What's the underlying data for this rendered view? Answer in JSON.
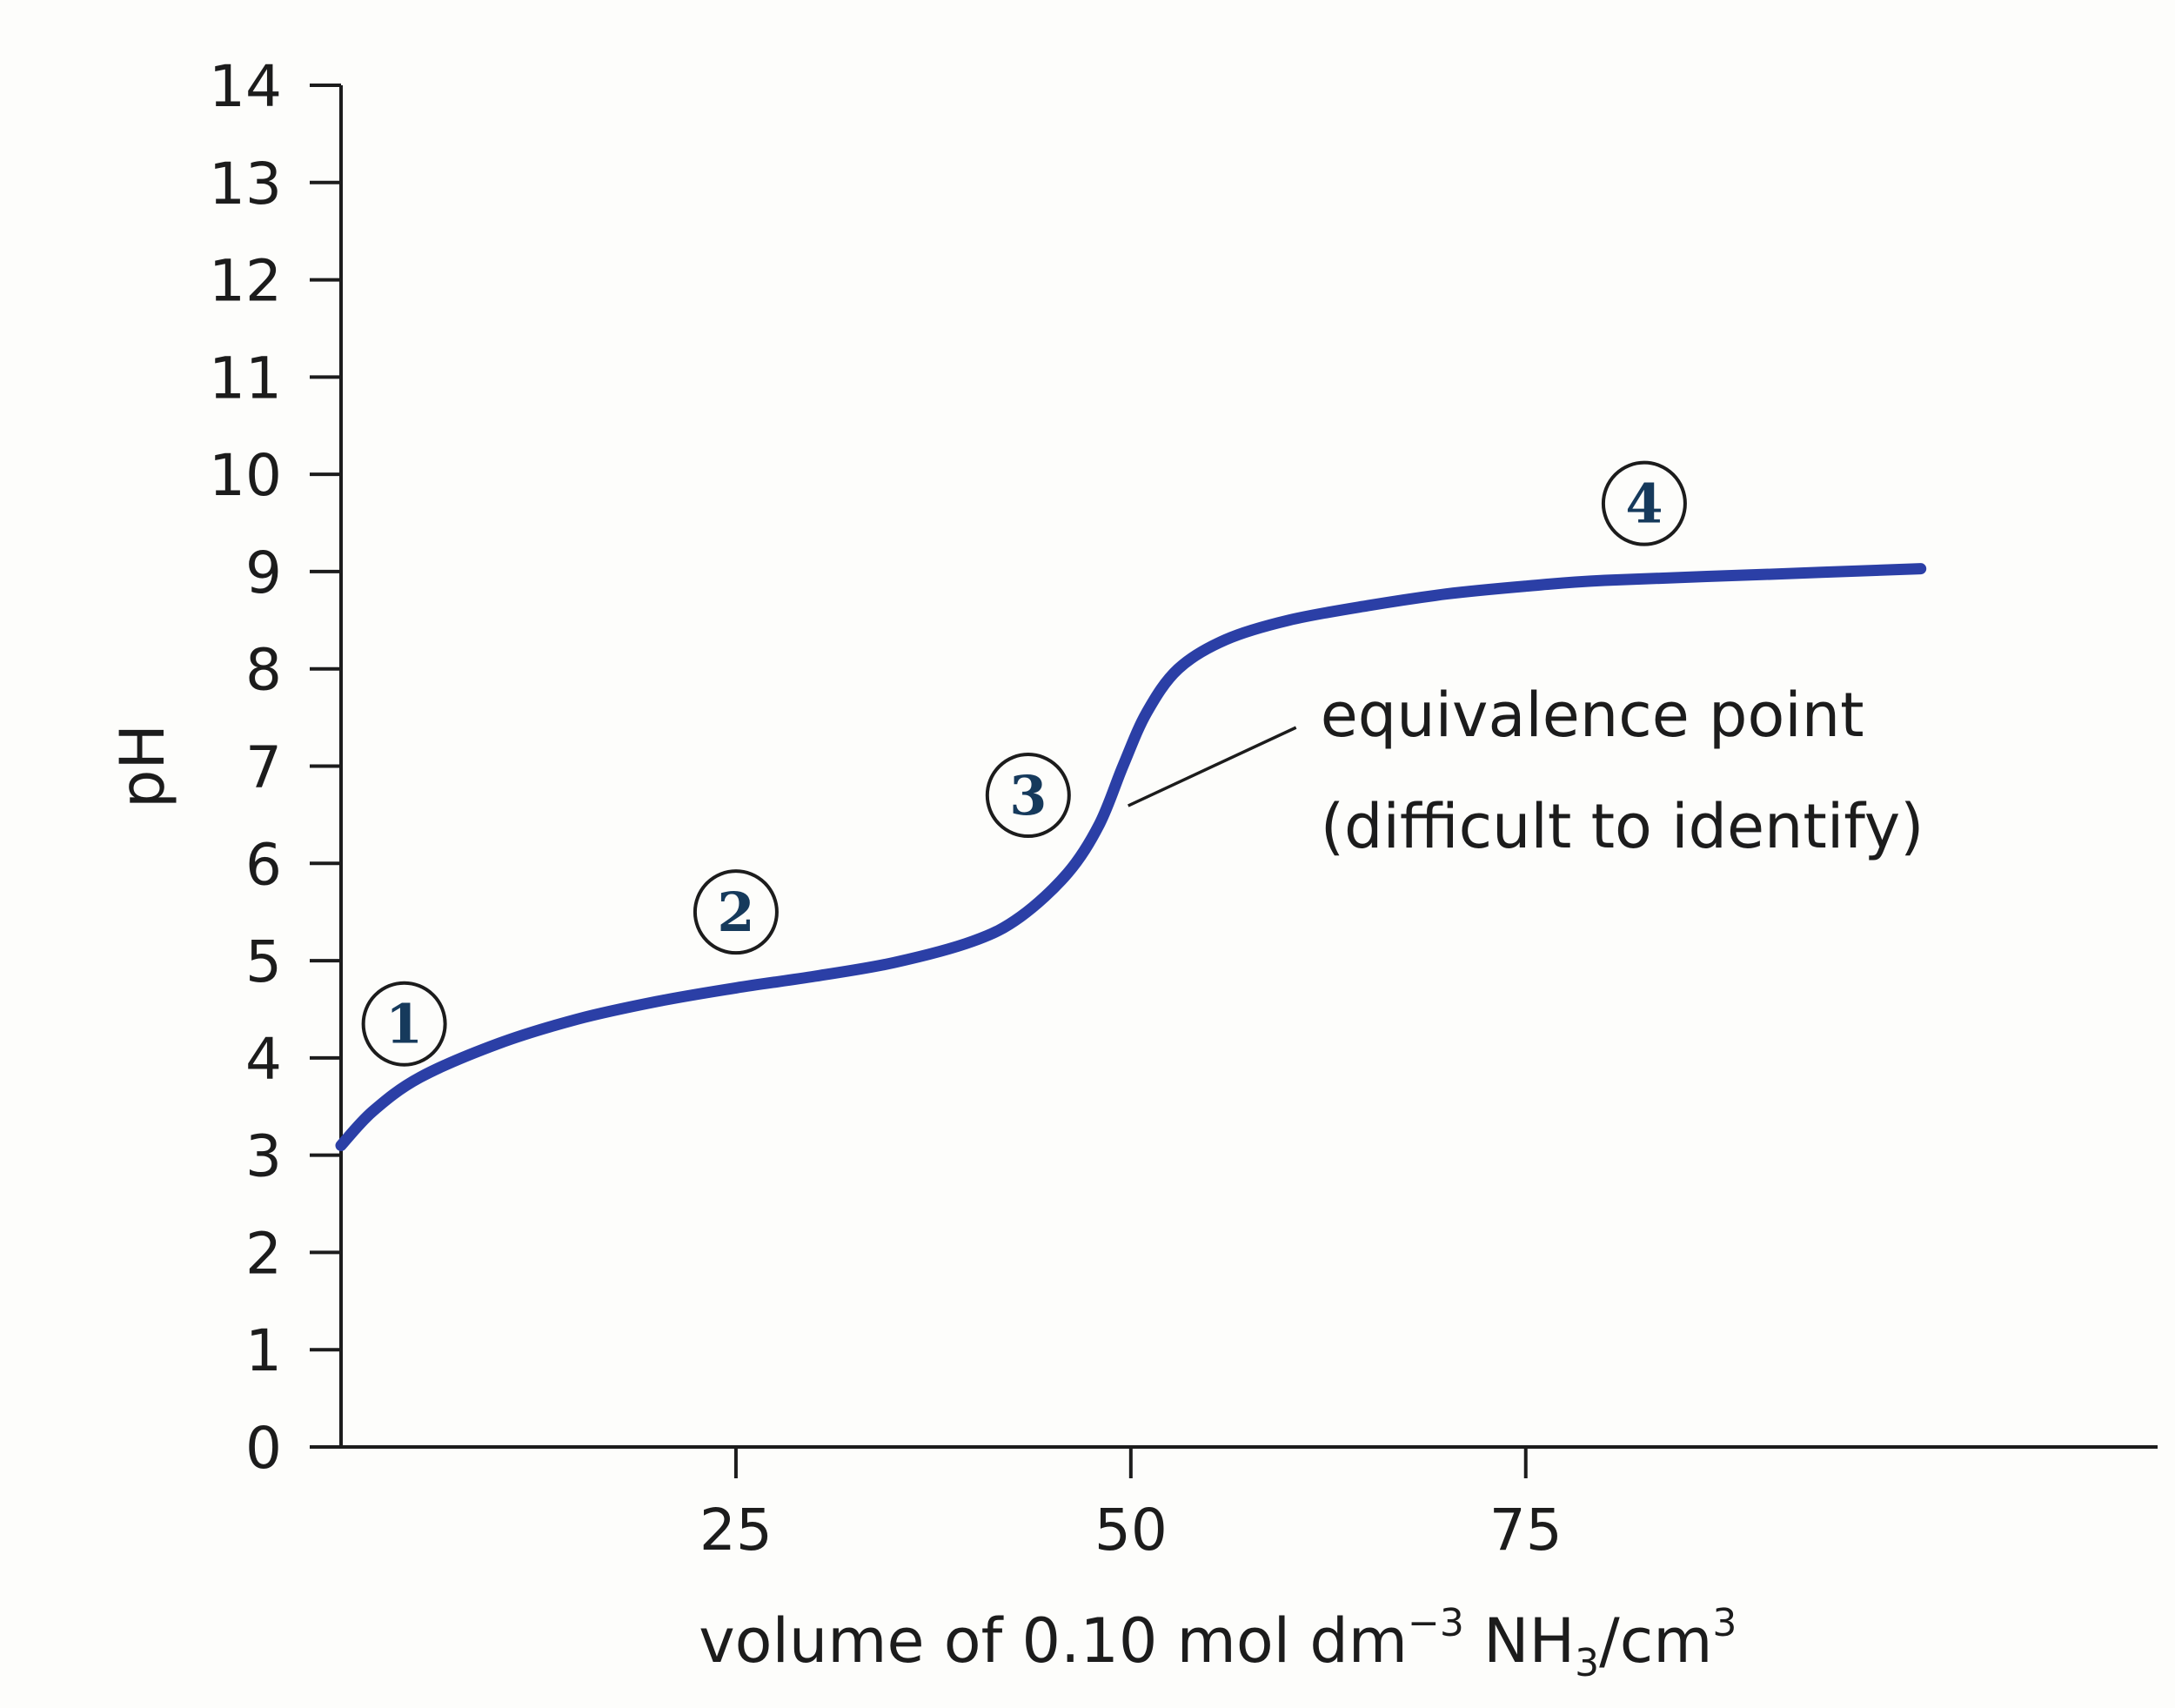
{
  "chart_data": {
    "type": "line",
    "xlabel": {
      "prefix": "volume of 0.10 mol dm",
      "exp": "−3",
      "species": " NH",
      "sub": "3",
      "unit": "/cm",
      "unit_exp": "3"
    },
    "ylabel": "pH",
    "xlim": [
      0,
      115
    ],
    "ylim": [
      0,
      14
    ],
    "x_ticks": [
      25,
      50,
      75
    ],
    "y_ticks": [
      0,
      1,
      2,
      3,
      4,
      5,
      6,
      7,
      8,
      9,
      10,
      11,
      12,
      13,
      14
    ],
    "grid": false,
    "series": [
      {
        "color": "#2b3fa6",
        "x": [
          0,
          2,
          5,
          10,
          15,
          20,
          25,
          30,
          35,
          40,
          43,
          46,
          48,
          49.5,
          51,
          53,
          56,
          60,
          65,
          70,
          75,
          80,
          90,
          100
        ],
        "y": [
          3.1,
          3.45,
          3.8,
          4.15,
          4.4,
          4.58,
          4.72,
          4.84,
          4.98,
          5.2,
          5.45,
          5.9,
          6.4,
          7.0,
          7.55,
          8.0,
          8.3,
          8.5,
          8.65,
          8.77,
          8.85,
          8.91,
          8.97,
          9.03
        ]
      }
    ],
    "regions": [
      {
        "label": "1",
        "x": 4,
        "y": 4.35
      },
      {
        "label": "2",
        "x": 25,
        "y": 5.5
      },
      {
        "label": "3",
        "x": 43.5,
        "y": 6.7
      },
      {
        "label": "4",
        "x": 82.5,
        "y": 9.7
      }
    ],
    "annotation": {
      "lines": [
        "equivalence point",
        "(difficult to identify)"
      ],
      "point": {
        "x": 49.5,
        "y": 6.7
      },
      "text_at": {
        "x": 62,
        "y": 7.2
      }
    }
  }
}
